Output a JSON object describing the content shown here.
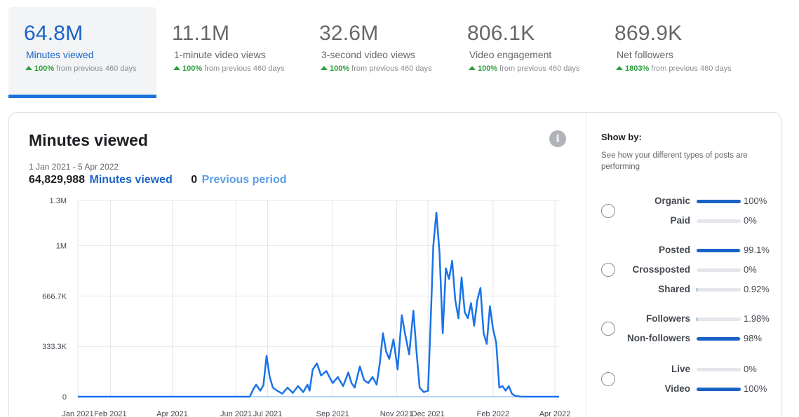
{
  "metrics": [
    {
      "value": "64.8M",
      "label": "Minutes viewed",
      "change_pct": "100%",
      "change_text": "from previous 460 days",
      "active": true
    },
    {
      "value": "11.1M",
      "label": "1-minute video views",
      "change_pct": "100%",
      "change_text": "from previous 460 days"
    },
    {
      "value": "32.6M",
      "label": "3-second video views",
      "change_pct": "100%",
      "change_text": "from previous 460 days"
    },
    {
      "value": "806.1K",
      "label": "Video engagement",
      "change_pct": "100%",
      "change_text": "from previous 460 days"
    },
    {
      "value": "869.9K",
      "label": "Net followers",
      "change_pct": "1803%",
      "change_text": "from previous 460 days"
    }
  ],
  "chart_panel": {
    "title": "Minutes viewed",
    "info_icon": "i",
    "date_range": "1 Jan 2021 - 5 Apr 2022",
    "current_total": "64,829,988",
    "current_label": "Minutes viewed",
    "previous_total": "0",
    "previous_label": "Previous period"
  },
  "colors": {
    "accent": "#1a63c6",
    "line": "#1a73e8",
    "previous_line": "#8ab4f8",
    "positive": "#2e9e3d"
  },
  "chart_data": {
    "type": "line",
    "title": "Minutes viewed",
    "xlabel": "",
    "ylabel": "",
    "ylim": [
      0,
      1300000
    ],
    "yticks": [
      0,
      333333,
      666667,
      1000000,
      1300000
    ],
    "ytick_labels": [
      "0",
      "333.3K",
      "666.7K",
      "1M",
      "1.3M"
    ],
    "xticks": [
      "2021-01-01",
      "2021-02-01",
      "2021-04-01",
      "2021-06-01",
      "2021-07-01",
      "2021-09-01",
      "2021-11-01",
      "2021-12-01",
      "2022-02-01",
      "2022-04-01"
    ],
    "xtick_labels": [
      "Jan 2021",
      "Feb 2021",
      "Apr 2021",
      "Jun 2021",
      "Jul 2021",
      "Sep 2021",
      "Nov 2021",
      "Dec 2021",
      "Feb 2022",
      "Apr 2022"
    ],
    "grid": true,
    "series": [
      {
        "name": "Minutes viewed",
        "points": [
          [
            "2021-01-01",
            0
          ],
          [
            "2021-06-14",
            0
          ],
          [
            "2021-06-17",
            45000
          ],
          [
            "2021-06-20",
            80000
          ],
          [
            "2021-06-24",
            40000
          ],
          [
            "2021-06-27",
            75000
          ],
          [
            "2021-06-30",
            270000
          ],
          [
            "2021-07-03",
            130000
          ],
          [
            "2021-07-06",
            60000
          ],
          [
            "2021-07-10",
            40000
          ],
          [
            "2021-07-15",
            20000
          ],
          [
            "2021-07-20",
            60000
          ],
          [
            "2021-07-25",
            25000
          ],
          [
            "2021-07-30",
            70000
          ],
          [
            "2021-08-04",
            30000
          ],
          [
            "2021-08-08",
            80000
          ],
          [
            "2021-08-10",
            40000
          ],
          [
            "2021-08-13",
            180000
          ],
          [
            "2021-08-17",
            220000
          ],
          [
            "2021-08-21",
            140000
          ],
          [
            "2021-08-26",
            170000
          ],
          [
            "2021-09-01",
            90000
          ],
          [
            "2021-09-06",
            130000
          ],
          [
            "2021-09-11",
            70000
          ],
          [
            "2021-09-16",
            160000
          ],
          [
            "2021-09-19",
            90000
          ],
          [
            "2021-09-22",
            60000
          ],
          [
            "2021-09-27",
            200000
          ],
          [
            "2021-10-01",
            110000
          ],
          [
            "2021-10-05",
            90000
          ],
          [
            "2021-10-09",
            130000
          ],
          [
            "2021-10-13",
            80000
          ],
          [
            "2021-10-16",
            220000
          ],
          [
            "2021-10-19",
            420000
          ],
          [
            "2021-10-22",
            300000
          ],
          [
            "2021-10-25",
            250000
          ],
          [
            "2021-10-29",
            380000
          ],
          [
            "2021-11-02",
            180000
          ],
          [
            "2021-11-06",
            540000
          ],
          [
            "2021-11-09",
            420000
          ],
          [
            "2021-11-13",
            280000
          ],
          [
            "2021-11-17",
            570000
          ],
          [
            "2021-11-20",
            300000
          ],
          [
            "2021-11-23",
            60000
          ],
          [
            "2021-11-27",
            30000
          ],
          [
            "2021-12-01",
            40000
          ],
          [
            "2021-12-04",
            600000
          ],
          [
            "2021-12-06",
            1000000
          ],
          [
            "2021-12-09",
            1220000
          ],
          [
            "2021-12-12",
            950000
          ],
          [
            "2021-12-15",
            420000
          ],
          [
            "2021-12-18",
            850000
          ],
          [
            "2021-12-21",
            780000
          ],
          [
            "2021-12-24",
            900000
          ],
          [
            "2021-12-27",
            640000
          ],
          [
            "2021-12-30",
            520000
          ],
          [
            "2022-01-02",
            790000
          ],
          [
            "2022-01-05",
            560000
          ],
          [
            "2022-01-08",
            520000
          ],
          [
            "2022-01-11",
            620000
          ],
          [
            "2022-01-14",
            470000
          ],
          [
            "2022-01-17",
            640000
          ],
          [
            "2022-01-20",
            720000
          ],
          [
            "2022-01-23",
            420000
          ],
          [
            "2022-01-26",
            350000
          ],
          [
            "2022-01-29",
            600000
          ],
          [
            "2022-02-01",
            450000
          ],
          [
            "2022-02-04",
            360000
          ],
          [
            "2022-02-07",
            60000
          ],
          [
            "2022-02-10",
            70000
          ],
          [
            "2022-02-13",
            40000
          ],
          [
            "2022-02-16",
            70000
          ],
          [
            "2022-02-19",
            20000
          ],
          [
            "2022-02-22",
            5000
          ],
          [
            "2022-02-28",
            0
          ],
          [
            "2022-04-05",
            0
          ]
        ]
      },
      {
        "name": "Previous period",
        "points": [
          [
            "2021-01-01",
            0
          ],
          [
            "2022-04-05",
            0
          ]
        ]
      }
    ]
  },
  "show_by": {
    "title": "Show by:",
    "description": "See how your different types of posts are performing",
    "groups": [
      {
        "rows": [
          {
            "label": "Organic",
            "value": "100%",
            "fraction": 1.0
          },
          {
            "label": "Paid",
            "value": "0%",
            "fraction": 0.0
          }
        ]
      },
      {
        "rows": [
          {
            "label": "Posted",
            "value": "99.1%",
            "fraction": 0.991
          },
          {
            "label": "Crossposted",
            "value": "0%",
            "fraction": 0.0
          },
          {
            "label": "Shared",
            "value": "0.92%",
            "fraction": 0.0092
          }
        ]
      },
      {
        "rows": [
          {
            "label": "Followers",
            "value": "1.98%",
            "fraction": 0.0198
          },
          {
            "label": "Non-followers",
            "value": "98%",
            "fraction": 0.98
          }
        ]
      },
      {
        "rows": [
          {
            "label": "Live",
            "value": "0%",
            "fraction": 0.0
          },
          {
            "label": "Video",
            "value": "100%",
            "fraction": 1.0
          }
        ]
      }
    ]
  }
}
